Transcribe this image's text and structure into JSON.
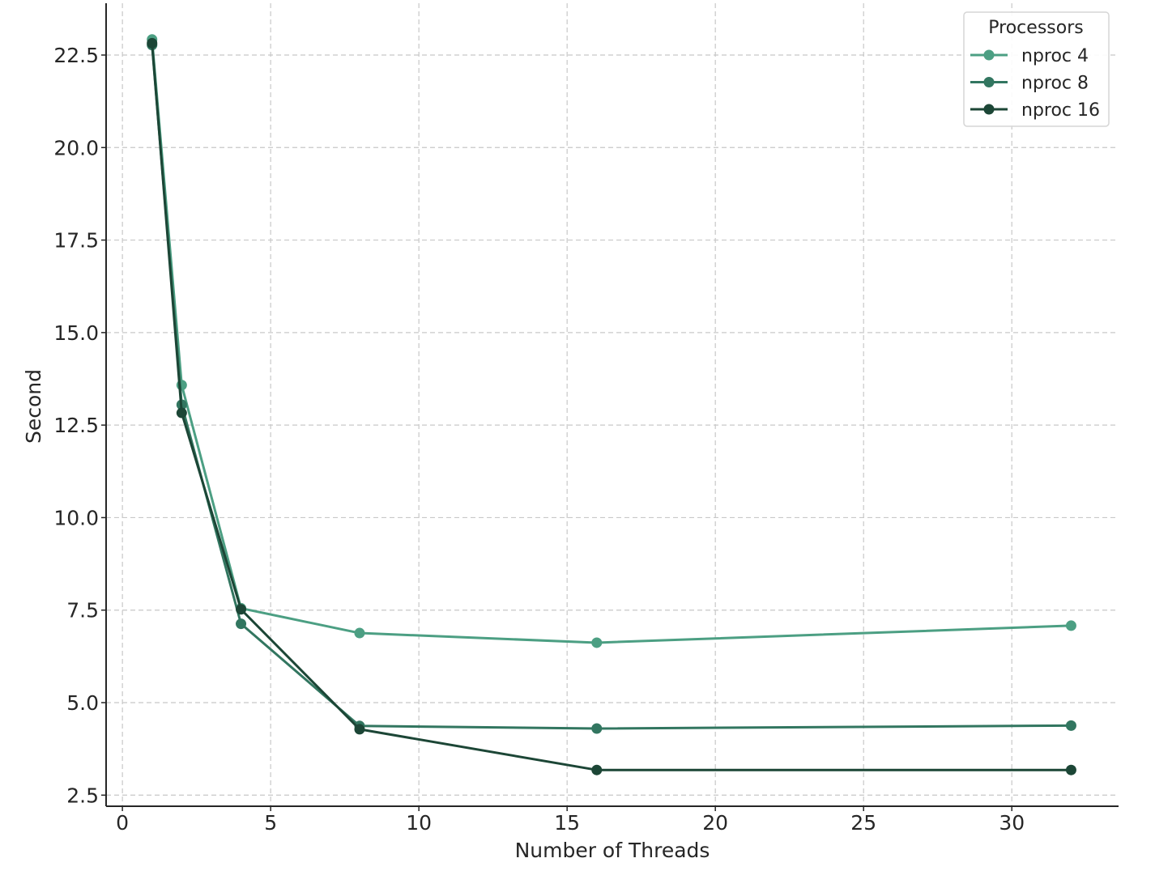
{
  "chart_data": {
    "type": "line",
    "xlabel": "Number of Threads",
    "ylabel": "Second",
    "xlim": [
      -0.55,
      33.6
    ],
    "ylim": [
      2.2,
      23.9
    ],
    "xticks": [
      0,
      5,
      10,
      15,
      20,
      25,
      30
    ],
    "yticks": [
      2.5,
      5.0,
      7.5,
      10.0,
      12.5,
      15.0,
      17.5,
      20.0,
      22.5
    ],
    "ytick_labels": [
      "2.5",
      "5.0",
      "7.5",
      "10.0",
      "12.5",
      "15.0",
      "17.5",
      "20.0",
      "22.5"
    ],
    "grid": true,
    "legend": {
      "title": "Processors",
      "position": "top-right"
    },
    "x": [
      1,
      2,
      4,
      8,
      16,
      32
    ],
    "series": [
      {
        "name": "nproc 4",
        "color": "#4c9f83",
        "values": [
          22.92,
          13.58,
          7.55,
          6.88,
          6.62,
          7.08
        ]
      },
      {
        "name": "nproc 8",
        "color": "#327660",
        "values": [
          22.77,
          13.05,
          7.13,
          4.37,
          4.3,
          4.38
        ]
      },
      {
        "name": "nproc 16",
        "color": "#1c4636",
        "values": [
          22.82,
          12.83,
          7.52,
          4.28,
          3.18,
          3.18
        ]
      }
    ]
  }
}
